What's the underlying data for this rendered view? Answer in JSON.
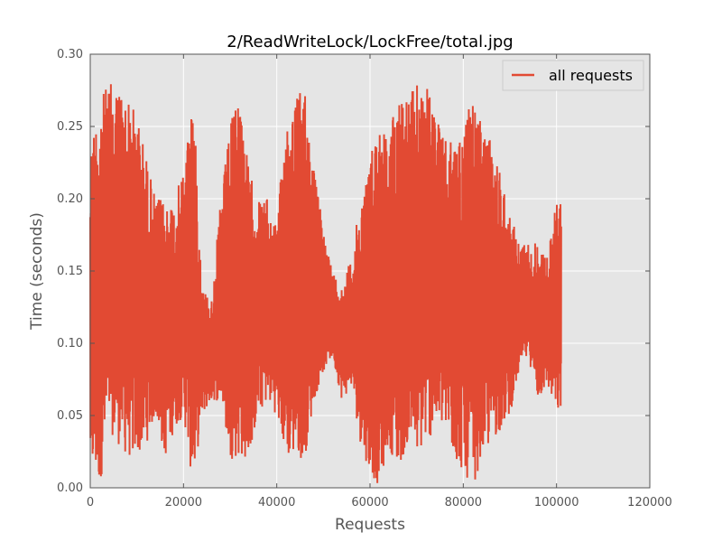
{
  "chart_data": {
    "type": "line",
    "title": "2/ReadWriteLock/LockFree/total.jpg",
    "xlabel": "Requests",
    "ylabel": "Time (seconds)",
    "xlim": [
      0,
      120000
    ],
    "ylim": [
      0.0,
      0.3
    ],
    "x_ticks": [
      "0",
      "20000",
      "40000",
      "60000",
      "80000",
      "100000",
      "120000"
    ],
    "y_ticks": [
      "0.00",
      "0.05",
      "0.10",
      "0.15",
      "0.20",
      "0.25",
      "0.30"
    ],
    "grid": true,
    "legend": {
      "position": "top-right",
      "entries": [
        "all requests"
      ]
    },
    "series_color": "#E24A33",
    "plot_background": "#E5E5E5",
    "series": [
      {
        "name": "all requests",
        "envelope_x": [
          0,
          2000,
          4000,
          6000,
          8000,
          10000,
          12000,
          14000,
          16000,
          18000,
          20000,
          22000,
          24000,
          26000,
          28000,
          30000,
          32000,
          34000,
          36000,
          38000,
          40000,
          42000,
          44000,
          46000,
          48000,
          50000,
          52000,
          54000,
          56000,
          58000,
          60000,
          62000,
          64000,
          66000,
          68000,
          70000,
          72000,
          74000,
          76000,
          78000,
          80000,
          82000,
          84000,
          86000,
          88000,
          90000,
          92000,
          94000,
          96000,
          98000,
          100000,
          101000
        ],
        "envelope_max": [
          0.24,
          0.27,
          0.28,
          0.28,
          0.27,
          0.26,
          0.23,
          0.2,
          0.2,
          0.2,
          0.22,
          0.28,
          0.14,
          0.13,
          0.2,
          0.25,
          0.28,
          0.22,
          0.2,
          0.2,
          0.18,
          0.26,
          0.27,
          0.28,
          0.22,
          0.18,
          0.15,
          0.14,
          0.16,
          0.2,
          0.23,
          0.26,
          0.24,
          0.28,
          0.27,
          0.28,
          0.28,
          0.26,
          0.24,
          0.24,
          0.25,
          0.27,
          0.25,
          0.24,
          0.22,
          0.19,
          0.17,
          0.17,
          0.17,
          0.16,
          0.2,
          0.2
        ],
        "envelope_min": [
          0.01,
          0.0,
          0.04,
          0.03,
          0.02,
          0.02,
          0.03,
          0.05,
          0.02,
          0.04,
          0.05,
          0.0,
          0.05,
          0.06,
          0.06,
          0.02,
          0.02,
          0.02,
          0.05,
          0.06,
          0.05,
          0.02,
          0.02,
          0.02,
          0.06,
          0.08,
          0.09,
          0.06,
          0.07,
          0.03,
          0.01,
          0.0,
          0.03,
          0.01,
          0.03,
          0.02,
          0.03,
          0.04,
          0.04,
          0.02,
          0.01,
          0.0,
          0.02,
          0.03,
          0.04,
          0.05,
          0.08,
          0.09,
          0.06,
          0.07,
          0.05,
          0.05
        ]
      }
    ]
  }
}
